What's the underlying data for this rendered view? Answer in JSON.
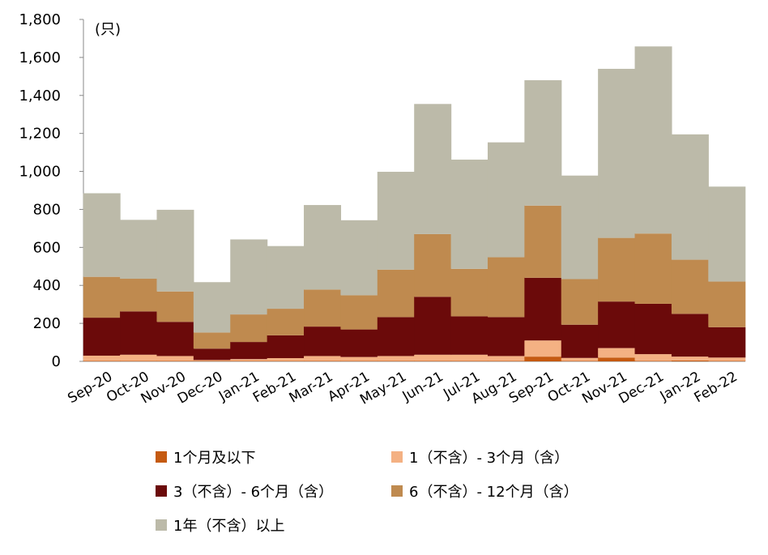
{
  "chart_data": {
    "type": "bar",
    "stacked": true,
    "unit_label": "(只)",
    "categories": [
      "Sep-20",
      "Oct-20",
      "Nov-20",
      "Dec-20",
      "Jan-21",
      "Feb-21",
      "Mar-21",
      "Apr-21",
      "May-21",
      "Jun-21",
      "Jul-21",
      "Aug-21",
      "Sep-21",
      "Oct-21",
      "Nov-21",
      "Dec-21",
      "Jan-22",
      "Feb-22"
    ],
    "ylim": [
      0,
      1800
    ],
    "yticks": [
      0,
      200,
      400,
      600,
      800,
      1000,
      1200,
      1400,
      1600,
      1800
    ],
    "ytick_labels": [
      "0",
      "200",
      "400",
      "600",
      "800",
      "1,000",
      "1,200",
      "1,400",
      "1,600",
      "1,800"
    ],
    "grid": false,
    "legend_position": "bottom",
    "series": [
      {
        "name": "1个月及以下",
        "color": "#C55A11",
        "values": [
          3,
          3,
          3,
          2,
          2,
          2,
          3,
          3,
          3,
          3,
          3,
          3,
          25,
          3,
          20,
          3,
          5,
          3
        ]
      },
      {
        "name": "1（不含）- 3个月（含）",
        "color": "#F4B183",
        "values": [
          27,
          32,
          25,
          5,
          10,
          15,
          25,
          20,
          25,
          32,
          32,
          25,
          85,
          15,
          50,
          35,
          20,
          17
        ]
      },
      {
        "name": "3（不含）- 6个月（含）",
        "color": "#6B0A0A",
        "values": [
          200,
          228,
          180,
          60,
          90,
          120,
          155,
          145,
          205,
          305,
          202,
          205,
          330,
          175,
          245,
          265,
          225,
          160
        ]
      },
      {
        "name": "6（不含）- 12个月（含）",
        "color": "#BF8A4F",
        "values": [
          215,
          172,
          160,
          85,
          145,
          140,
          195,
          180,
          250,
          330,
          250,
          315,
          380,
          240,
          335,
          370,
          285,
          240
        ]
      },
      {
        "name": "1年（不含）以上",
        "color": "#BCBAA9",
        "values": [
          440,
          310,
          430,
          265,
          395,
          330,
          445,
          395,
          515,
          685,
          575,
          605,
          660,
          545,
          890,
          985,
          660,
          500
        ]
      }
    ]
  }
}
